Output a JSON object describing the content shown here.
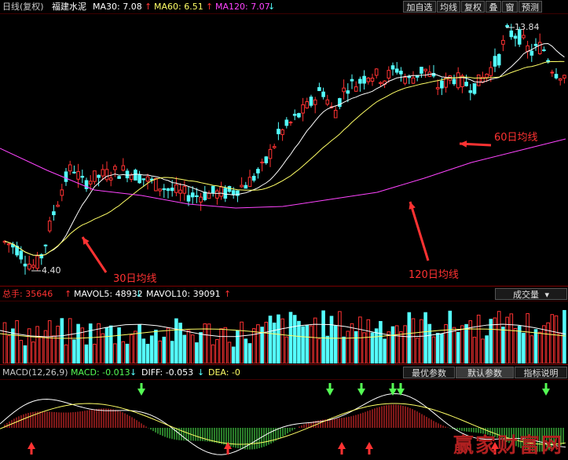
{
  "header": {
    "period": "日线(复权)",
    "stock_name": "福建水泥",
    "ma30": "MA30: 7.08",
    "ma60": "MA60: 6.51",
    "ma120": "MA120: 7.07",
    "buttons": [
      "加自选",
      "均线",
      "复权",
      "叠",
      "窗",
      "预测"
    ]
  },
  "price_panel": {
    "high_label": "13.84",
    "low_label": "4.40",
    "annotations": {
      "ma30": "30日均线",
      "ma60": "60日均线",
      "ma120": "120日均线"
    }
  },
  "volume_panel": {
    "total": "总手: 35646",
    "mavol5": "MAVOL5: 48932",
    "mavol10": "MAVOL10: 39091",
    "selector": "成交量"
  },
  "macd_panel": {
    "title": "MACD(12,26,9)",
    "macd": "MACD: -0.013",
    "diff": "DIFF: -0.053",
    "dea": "DEA: -0",
    "tabs": [
      "最优参数",
      "默认参数",
      "指标说明"
    ]
  },
  "watermark": "赢家财富网",
  "colors": {
    "up": "#ff3232",
    "down": "#54fcfc",
    "ma30": "#ffffff",
    "ma60": "#ffff66",
    "ma120": "#ff44ff",
    "annotation": "#ff3232"
  }
}
